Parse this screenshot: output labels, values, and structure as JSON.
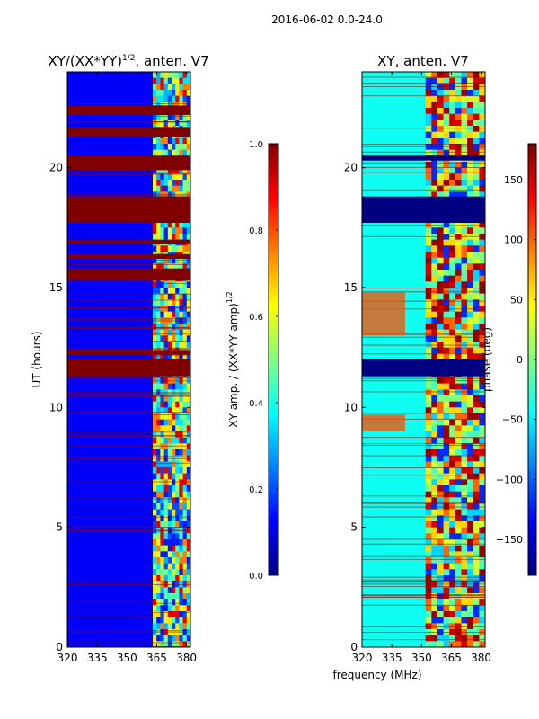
{
  "suptitle": "2016-06-02 0.0-24.0",
  "shared_xlabel": "frequency (MHz)",
  "colors": {
    "jet_stops": [
      "#000080",
      "#0000ff",
      "#0080ff",
      "#00ffff",
      "#80ff80",
      "#ffff00",
      "#ff8000",
      "#ff0000",
      "#800000"
    ]
  },
  "chart_data": [
    {
      "type": "heatmap",
      "title_main": "XY/(XX*YY)",
      "title_sup": "1/2",
      "title_suffix": ", anten. V7",
      "xlabel": "",
      "ylabel": "UT (hours)",
      "x_range": [
        320,
        382
      ],
      "y_range": [
        0,
        24
      ],
      "x_ticks": [
        {
          "value": 320,
          "label": "320"
        },
        {
          "value": 335,
          "label": "335"
        },
        {
          "value": 350,
          "label": "350"
        },
        {
          "value": 365,
          "label": "365"
        },
        {
          "value": 380,
          "label": "380"
        }
      ],
      "y_ticks": [
        {
          "value": 0,
          "label": "0"
        },
        {
          "value": 5,
          "label": "5"
        },
        {
          "value": 10,
          "label": "10"
        },
        {
          "value": 15,
          "label": "15"
        },
        {
          "value": 20,
          "label": "20"
        }
      ],
      "colorbar": {
        "label": "XY amp. / (XX*YY amp)",
        "label_sup": "1/2",
        "range": [
          0.0,
          1.0
        ],
        "ticks": [
          {
            "value": 0.0,
            "label": "0.0"
          },
          {
            "value": 0.2,
            "label": "0.2"
          },
          {
            "value": 0.4,
            "label": "0.4"
          },
          {
            "value": 0.6,
            "label": "0.6"
          },
          {
            "value": 0.8,
            "label": "0.8"
          },
          {
            "value": 1.0,
            "label": "1.0"
          }
        ]
      },
      "background_value": 0.12,
      "saturated_time_bands": [
        [
          11.3,
          12.0
        ],
        [
          12.2,
          12.4
        ],
        [
          15.3,
          15.8
        ],
        [
          16.2,
          16.4
        ],
        [
          16.8,
          17.0
        ],
        [
          17.7,
          18.8
        ],
        [
          19.9,
          20.5
        ],
        [
          21.3,
          21.7
        ],
        [
          22.2,
          22.6
        ]
      ],
      "active_freq_range": [
        363,
        382
      ],
      "active_cell_values": [
        0.15,
        0.45,
        0.6,
        0.3,
        0.75,
        0.2,
        0.5,
        0.9,
        0.35,
        0.65
      ]
    },
    {
      "type": "heatmap",
      "title_main": "XY, anten. V7",
      "title_sup": "",
      "title_suffix": "",
      "xlabel": "",
      "ylabel": "",
      "x_range": [
        320,
        382
      ],
      "y_range": [
        0,
        24
      ],
      "x_ticks": [
        {
          "value": 320,
          "label": "320"
        },
        {
          "value": 335,
          "label": "335"
        },
        {
          "value": 350,
          "label": "350"
        },
        {
          "value": 365,
          "label": "365"
        },
        {
          "value": 380,
          "label": "380"
        }
      ],
      "y_ticks": [
        {
          "value": 0,
          "label": "0"
        },
        {
          "value": 5,
          "label": "5"
        },
        {
          "value": 10,
          "label": "10"
        },
        {
          "value": 15,
          "label": "15"
        },
        {
          "value": 20,
          "label": "20"
        }
      ],
      "colorbar": {
        "label": "phase (deg)",
        "label_sup": "",
        "range": [
          -180,
          180
        ],
        "ticks": [
          {
            "value": -150,
            "label": "−150"
          },
          {
            "value": -100,
            "label": "−100"
          },
          {
            "value": -50,
            "label": "−50"
          },
          {
            "value": 0,
            "label": "0"
          },
          {
            "value": 50,
            "label": "50"
          },
          {
            "value": 100,
            "label": "100"
          },
          {
            "value": 150,
            "label": "150"
          }
        ]
      },
      "background_value": -40,
      "saturated_time_bands": [
        [
          11.3,
          12.0
        ],
        [
          17.7,
          18.8
        ],
        [
          20.3,
          20.5
        ]
      ],
      "red_time_bands": [
        [
          13.0,
          14.8
        ],
        [
          9.0,
          9.7
        ]
      ],
      "active_freq_range": [
        352,
        382
      ],
      "active_cell_values": [
        -120,
        0,
        60,
        150,
        -60,
        100,
        170,
        -20,
        30
      ]
    }
  ]
}
